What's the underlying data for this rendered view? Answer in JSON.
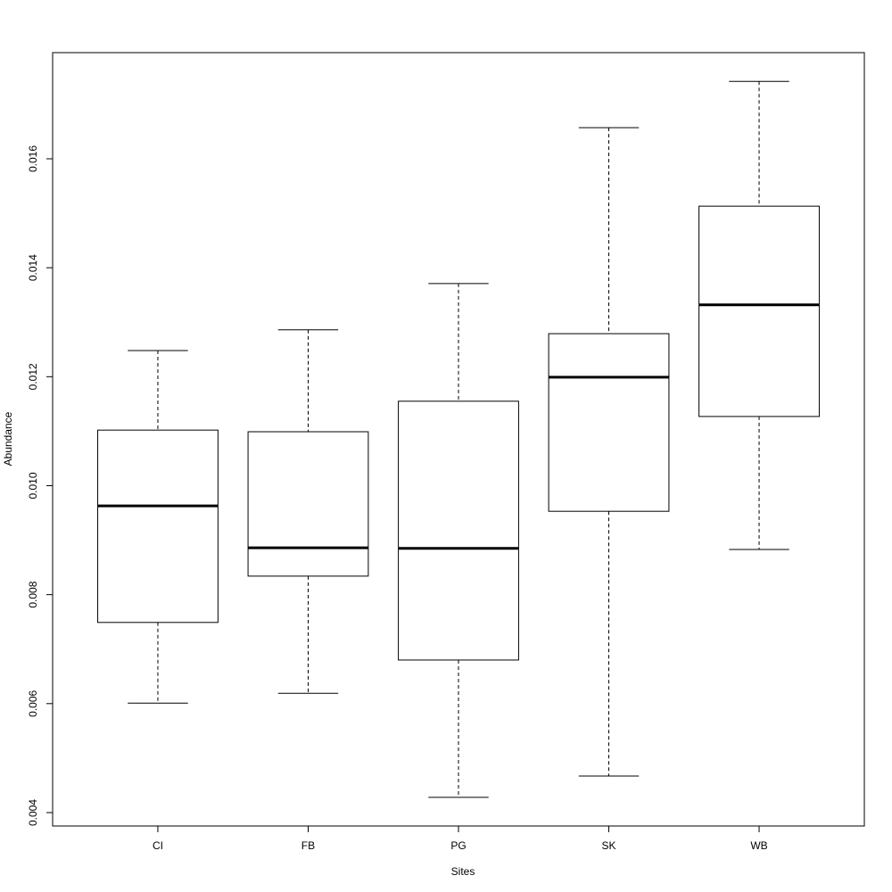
{
  "chart_data": {
    "type": "boxplot",
    "x_label": "Sites",
    "y_label": "Abundance",
    "categories": [
      "CI",
      "FB",
      "PG",
      "SK",
      "WB"
    ],
    "whisker_low": [
      0.00601,
      0.00619,
      0.00428,
      0.00467,
      0.00883
    ],
    "q1": [
      0.00749,
      0.00834,
      0.0068,
      0.00953,
      0.01127
    ],
    "median": [
      0.00963,
      0.00886,
      0.00885,
      0.01199,
      0.01332
    ],
    "q3": [
      0.01102,
      0.01099,
      0.01155,
      0.01279,
      0.01513
    ],
    "whisker_high": [
      0.01248,
      0.01286,
      0.01371,
      0.01657,
      0.01742
    ],
    "ylim": [
      0.003754,
      0.017948
    ],
    "yticks": [
      0.004,
      0.006,
      0.008,
      {
        "value": 0.01,
        "label": "0.010"
      },
      0.012,
      0.014,
      0.016
    ],
    "color": "#ffffff"
  }
}
